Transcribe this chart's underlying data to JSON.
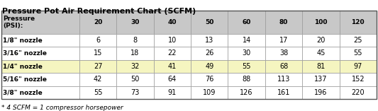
{
  "title": "Pressure Pot Air Requirement Chart (SCFM)",
  "col_headers": [
    "Pressure\n(PSI):",
    "20",
    "30",
    "40",
    "50",
    "60",
    "80",
    "100",
    "120"
  ],
  "row_labels": [
    "1/8\" nozzle",
    "3/16\" nozzle",
    "1/4\" nozzle",
    "5/16\" nozzle",
    "3/8\" nozzle"
  ],
  "table_data": [
    [
      "6",
      "8",
      "10",
      "13",
      "14",
      "17",
      "20",
      "25"
    ],
    [
      "15",
      "18",
      "22",
      "26",
      "30",
      "38",
      "45",
      "55"
    ],
    [
      "27",
      "32",
      "41",
      "49",
      "55",
      "68",
      "81",
      "97"
    ],
    [
      "42",
      "50",
      "64",
      "76",
      "88",
      "113",
      "137",
      "152"
    ],
    [
      "55",
      "73",
      "91",
      "109",
      "126",
      "161",
      "196",
      "220"
    ]
  ],
  "footnote": "* 4 SCFM = 1 compressor horsepower",
  "header_bg": "#c8c8c8",
  "row_bg_white": "#ffffff",
  "row_bg_yellow": "#fafacc",
  "row_bgs": [
    "#ffffff",
    "#ffffff",
    "#f5f5c0",
    "#ffffff",
    "#ffffff"
  ],
  "border_color": "#999999",
  "title_color": "#000000",
  "text_color": "#000000",
  "footnote_color": "#000000",
  "col_widths_rel": [
    2.1,
    1.0,
    1.0,
    1.0,
    1.0,
    1.0,
    1.0,
    1.0,
    1.0
  ],
  "title_fontsize": 8.0,
  "header_fontsize": 6.5,
  "cell_fontsize": 7.0,
  "footnote_fontsize": 6.5
}
